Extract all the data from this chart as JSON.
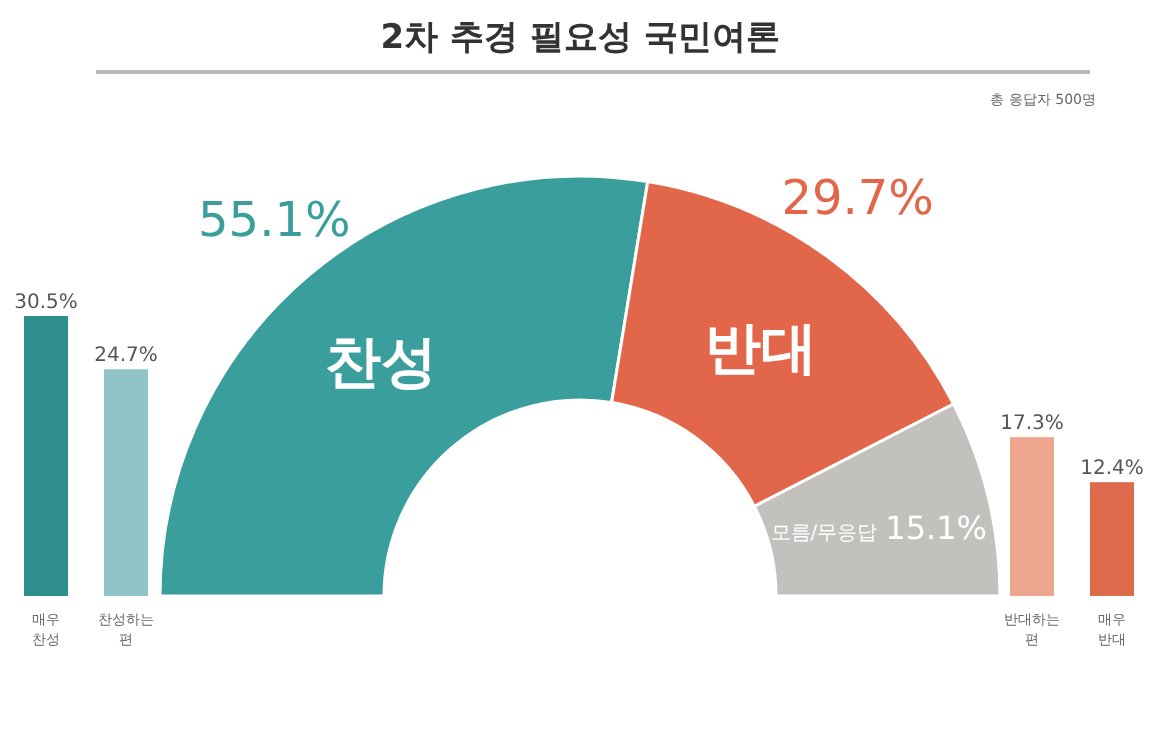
{
  "chart_data": [
    {
      "type": "donut",
      "title": "2차 추경 필요성 국민여론",
      "annotations": [
        "총 응답자 500명"
      ],
      "categories": [
        "찬성",
        "반대",
        "모름/무응답"
      ],
      "values": [
        55.1,
        29.7,
        15.1
      ],
      "colors": [
        "#3a9e9c",
        "#e2674a",
        "#c3c1bd"
      ],
      "value_labels": [
        "55.1%",
        "29.7%",
        "15.1%"
      ]
    },
    {
      "type": "bar",
      "categories": [
        "매우 찬성",
        "찬성하는 편"
      ],
      "values": [
        30.5,
        24.7
      ],
      "colors": [
        "#2f8f8f",
        "#8fc4c8"
      ],
      "value_labels": [
        "30.5%",
        "24.7%"
      ]
    },
    {
      "type": "bar",
      "categories": [
        "반대하는 편",
        "매우 반대"
      ],
      "values": [
        17.3,
        12.4
      ],
      "colors": [
        "#eea58f",
        "#dd6b4c"
      ],
      "value_labels": [
        "17.3%",
        "12.4%"
      ]
    }
  ]
}
